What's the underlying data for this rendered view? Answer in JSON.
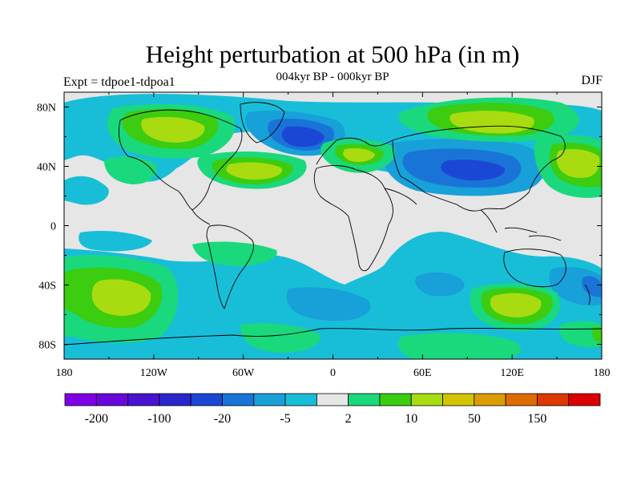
{
  "title": "Height perturbation at 500 hPa (in m)",
  "subtitle": "004kyr BP - 000kyr BP",
  "left_label": "Expt = tdpoe1-tdpoa1",
  "right_label": "DJF",
  "map": {
    "projection": "cylindrical-equidistant",
    "center_longitude": 0,
    "lon_range": [
      -180,
      180
    ],
    "lat_range": [
      -90,
      90
    ],
    "background_color": "#e6e6e6",
    "coastline_color": "#000000",
    "x_ticks": [
      "180",
      "120W",
      "60W",
      "0",
      "60E",
      "120E",
      "180"
    ],
    "y_ticks": [
      "80N",
      "40N",
      "0",
      "40S",
      "80S"
    ],
    "y_tick_values": [
      80,
      40,
      0,
      -40,
      -80
    ]
  },
  "colorbar": {
    "colors": [
      "#8000e6",
      "#6a06dc",
      "#4a12d0",
      "#2a26cc",
      "#1a48d4",
      "#1a74d8",
      "#18a0d8",
      "#18bed8",
      "#e6e6e6",
      "#1ad87c",
      "#3ccc10",
      "#a8dc10",
      "#d4c400",
      "#dc9c00",
      "#dc6c00",
      "#dc3800",
      "#dc0000"
    ],
    "visible_labels": [
      "-200",
      "-100",
      "-20",
      "-5",
      "2",
      "10",
      "50",
      "150"
    ]
  },
  "field_features": [
    {
      "region": "North Atlantic / Greenland",
      "sign": "negative",
      "peak_level": "-100"
    },
    {
      "region": "Central Asia / Siberia",
      "sign": "negative",
      "peak_level": "-100"
    },
    {
      "region": "Eastern Siberia / Arctic",
      "sign": "positive",
      "peak_level": "50"
    },
    {
      "region": "North America",
      "sign": "positive",
      "peak_level": "50"
    },
    {
      "region": "Western North Atlantic",
      "sign": "positive",
      "peak_level": "50"
    },
    {
      "region": "Europe / Mediterranean",
      "sign": "positive",
      "peak_level": "50"
    },
    {
      "region": "Southern Indian Ocean",
      "sign": "positive",
      "peak_level": "50"
    },
    {
      "region": "South Pacific",
      "sign": "positive",
      "peak_level": "50"
    }
  ]
}
